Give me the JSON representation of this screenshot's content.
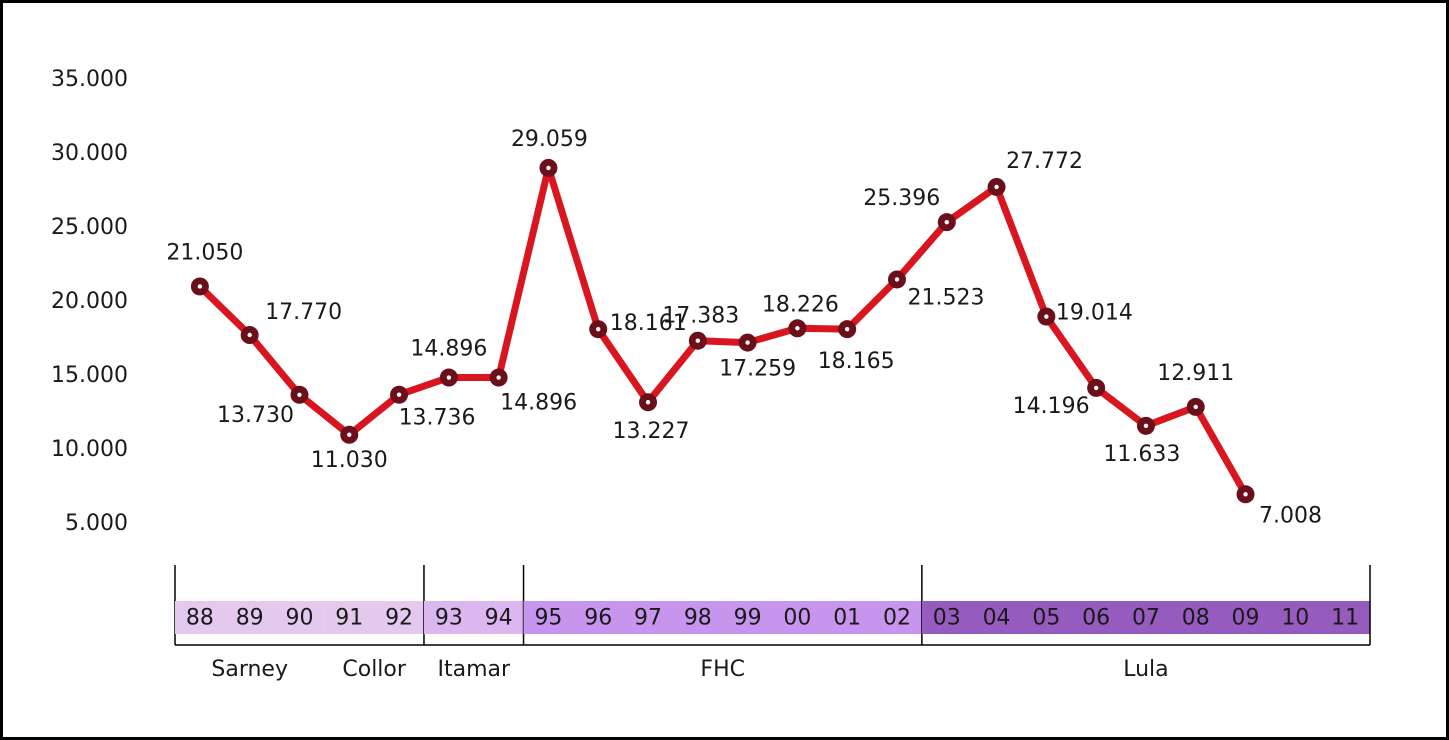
{
  "chart_data": {
    "type": "line",
    "categories": [
      "88",
      "89",
      "90",
      "91",
      "92",
      "93",
      "94",
      "95",
      "96",
      "97",
      "98",
      "99",
      "00",
      "01",
      "02",
      "03",
      "04",
      "05",
      "06",
      "07",
      "08",
      "09",
      "10",
      "11"
    ],
    "series": [
      {
        "color": "#d9161f",
        "values": [
          21050,
          17770,
          13730,
          11030,
          13736,
          14896,
          14896,
          29059,
          18161,
          13227,
          17383,
          17259,
          18226,
          18165,
          21523,
          25396,
          27772,
          19014,
          14196,
          11633,
          12911,
          7008,
          null,
          null
        ],
        "value_labels": [
          "21.050",
          "17.770",
          "13.730",
          "11.030",
          "13.736",
          "14.896",
          "14.896",
          "29.059",
          "18.161",
          "13.227",
          "17.383",
          "17.259",
          "18.226",
          "18.165",
          "21.523",
          "25.396",
          "27.772",
          "19.014",
          "14.196",
          "11.633",
          "12.911",
          "7.008",
          null,
          null
        ]
      }
    ],
    "marker_color": "#6b0f1a",
    "ylim": [
      5000,
      35000
    ],
    "yticks": [
      {
        "value": 35000,
        "label": "35.000"
      },
      {
        "value": 30000,
        "label": "30.000"
      },
      {
        "value": 25000,
        "label": "25.000"
      },
      {
        "value": 20000,
        "label": "20.000"
      },
      {
        "value": 15000,
        "label": "15.000"
      },
      {
        "value": 10000,
        "label": "10.000"
      },
      {
        "value": 5000,
        "label": "5.000"
      }
    ],
    "grid": false,
    "periods": [
      {
        "name": "Sarney",
        "size": 3,
        "color": "#e4c8ee"
      },
      {
        "name": "Collor",
        "size": 2,
        "color": "#e4c8ee"
      },
      {
        "name": "Itamar",
        "size": 2,
        "color": "#dcb6ee"
      },
      {
        "name": "FHC",
        "size": 8,
        "color": "#c795ed"
      },
      {
        "name": "Lula",
        "size": 9,
        "color": "#965bbe"
      }
    ]
  }
}
